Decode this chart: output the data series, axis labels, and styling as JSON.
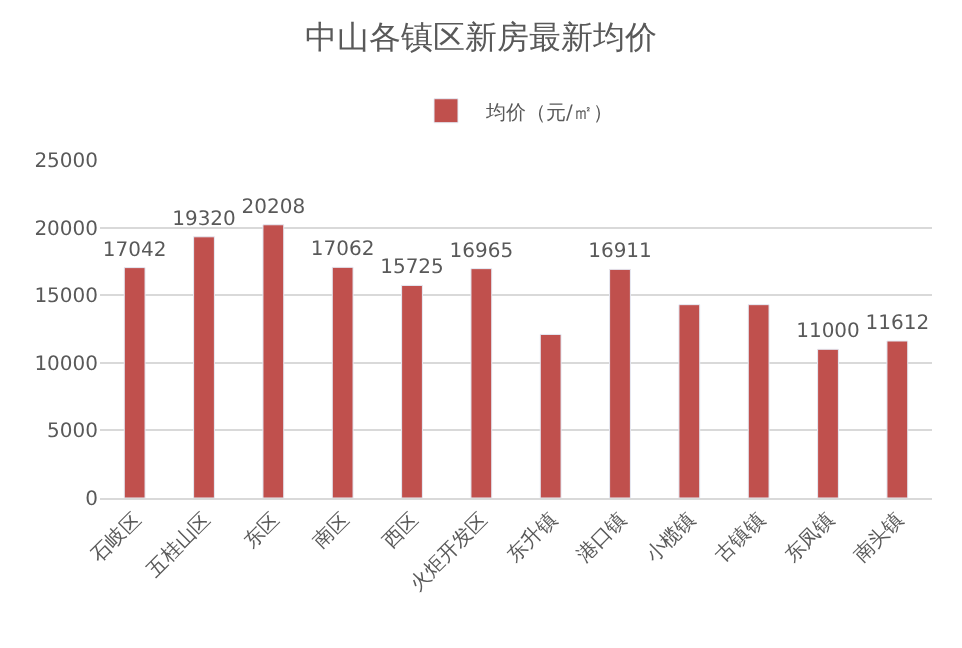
{
  "chart_data": {
    "type": "bar",
    "title": "中山各镇区新房最新均价",
    "categories": [
      "石岐区",
      "五桂山区",
      "东区",
      "南区",
      "西区",
      "火炬开发区",
      "东升镇",
      "港口镇",
      "小榄镇",
      "古镇镇",
      "东凤镇",
      "南头镇"
    ],
    "series": [
      {
        "name": "均价（元/㎡）",
        "color": "#c0504d",
        "values": [
          17042,
          19320,
          20208,
          17062,
          15725,
          16965,
          12100,
          16911,
          14300,
          14300,
          11000,
          11612
        ],
        "value_labels": [
          "17042",
          "19320",
          "20208",
          "17062",
          "15725",
          "16965",
          null,
          "16911",
          null,
          null,
          "11000",
          "11612"
        ]
      }
    ],
    "ylim": [
      0,
      25000
    ],
    "yticks": [
      0,
      5000,
      10000,
      15000,
      20000,
      25000
    ],
    "grid": "y",
    "legend": "top"
  }
}
